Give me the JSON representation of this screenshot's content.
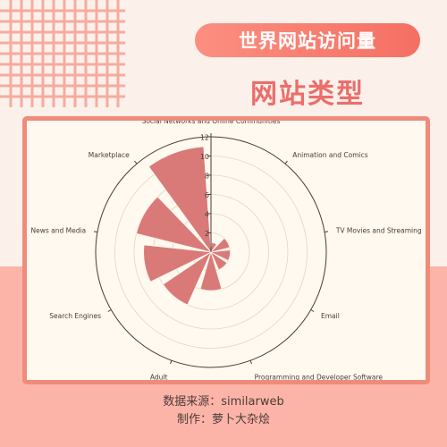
{
  "header": {
    "title": "世界网站访问量",
    "subtitle": "网站类型"
  },
  "footer": {
    "source": "数据来源：similarweb",
    "author": "制作：萝卜大杂烩"
  },
  "colors": {
    "bar": "#d97a78",
    "accent": "#ef8b7a",
    "title_bg": "#f56f63"
  },
  "chart_data": {
    "type": "bar",
    "polar": true,
    "title": "",
    "categories": [
      "Animation and Comics",
      "TV Movies and Streaming",
      "Email",
      "Programming and Developer Software",
      "Adult",
      "Search Engines",
      "News and Media",
      "Marketplace",
      "Social Networks and Online Communities"
    ],
    "values": [
      1,
      2,
      2,
      2,
      4,
      6,
      7,
      8,
      11
    ],
    "rlim": [
      0,
      12
    ],
    "r_ticks": [
      0,
      2,
      4,
      6,
      8,
      10,
      12
    ],
    "grid": true
  }
}
